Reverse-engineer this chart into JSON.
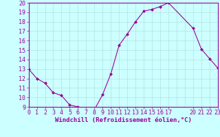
{
  "x": [
    0,
    1,
    2,
    3,
    4,
    5,
    6,
    7,
    8,
    9,
    10,
    11,
    12,
    13,
    14,
    15,
    16,
    17,
    20,
    21,
    22,
    23
  ],
  "y": [
    13,
    12,
    11.5,
    10.5,
    10.2,
    9.2,
    9.0,
    8.8,
    8.7,
    10.3,
    12.5,
    15.5,
    16.7,
    18.0,
    19.1,
    19.3,
    19.6,
    20.0,
    17.3,
    15.1,
    14.1,
    13.1
  ],
  "line_color": "#990099",
  "marker": "D",
  "marker_size": 2.0,
  "bg_color": "#ccffff",
  "grid_color": "#b0d8d8",
  "xlabel": "Windchill (Refroidissement éolien,°C)",
  "ylabel": "",
  "title": "",
  "xlim": [
    0,
    23
  ],
  "ylim": [
    9,
    20
  ],
  "xticks": [
    0,
    1,
    2,
    3,
    4,
    5,
    6,
    7,
    8,
    9,
    10,
    11,
    12,
    13,
    14,
    15,
    16,
    17,
    20,
    21,
    22,
    23
  ],
  "yticks": [
    9,
    10,
    11,
    12,
    13,
    14,
    15,
    16,
    17,
    18,
    19,
    20
  ],
  "xlabel_fontsize": 6.5,
  "tick_fontsize": 6.0,
  "axis_color": "#990099",
  "spine_color": "#990099",
  "linewidth": 0.8
}
